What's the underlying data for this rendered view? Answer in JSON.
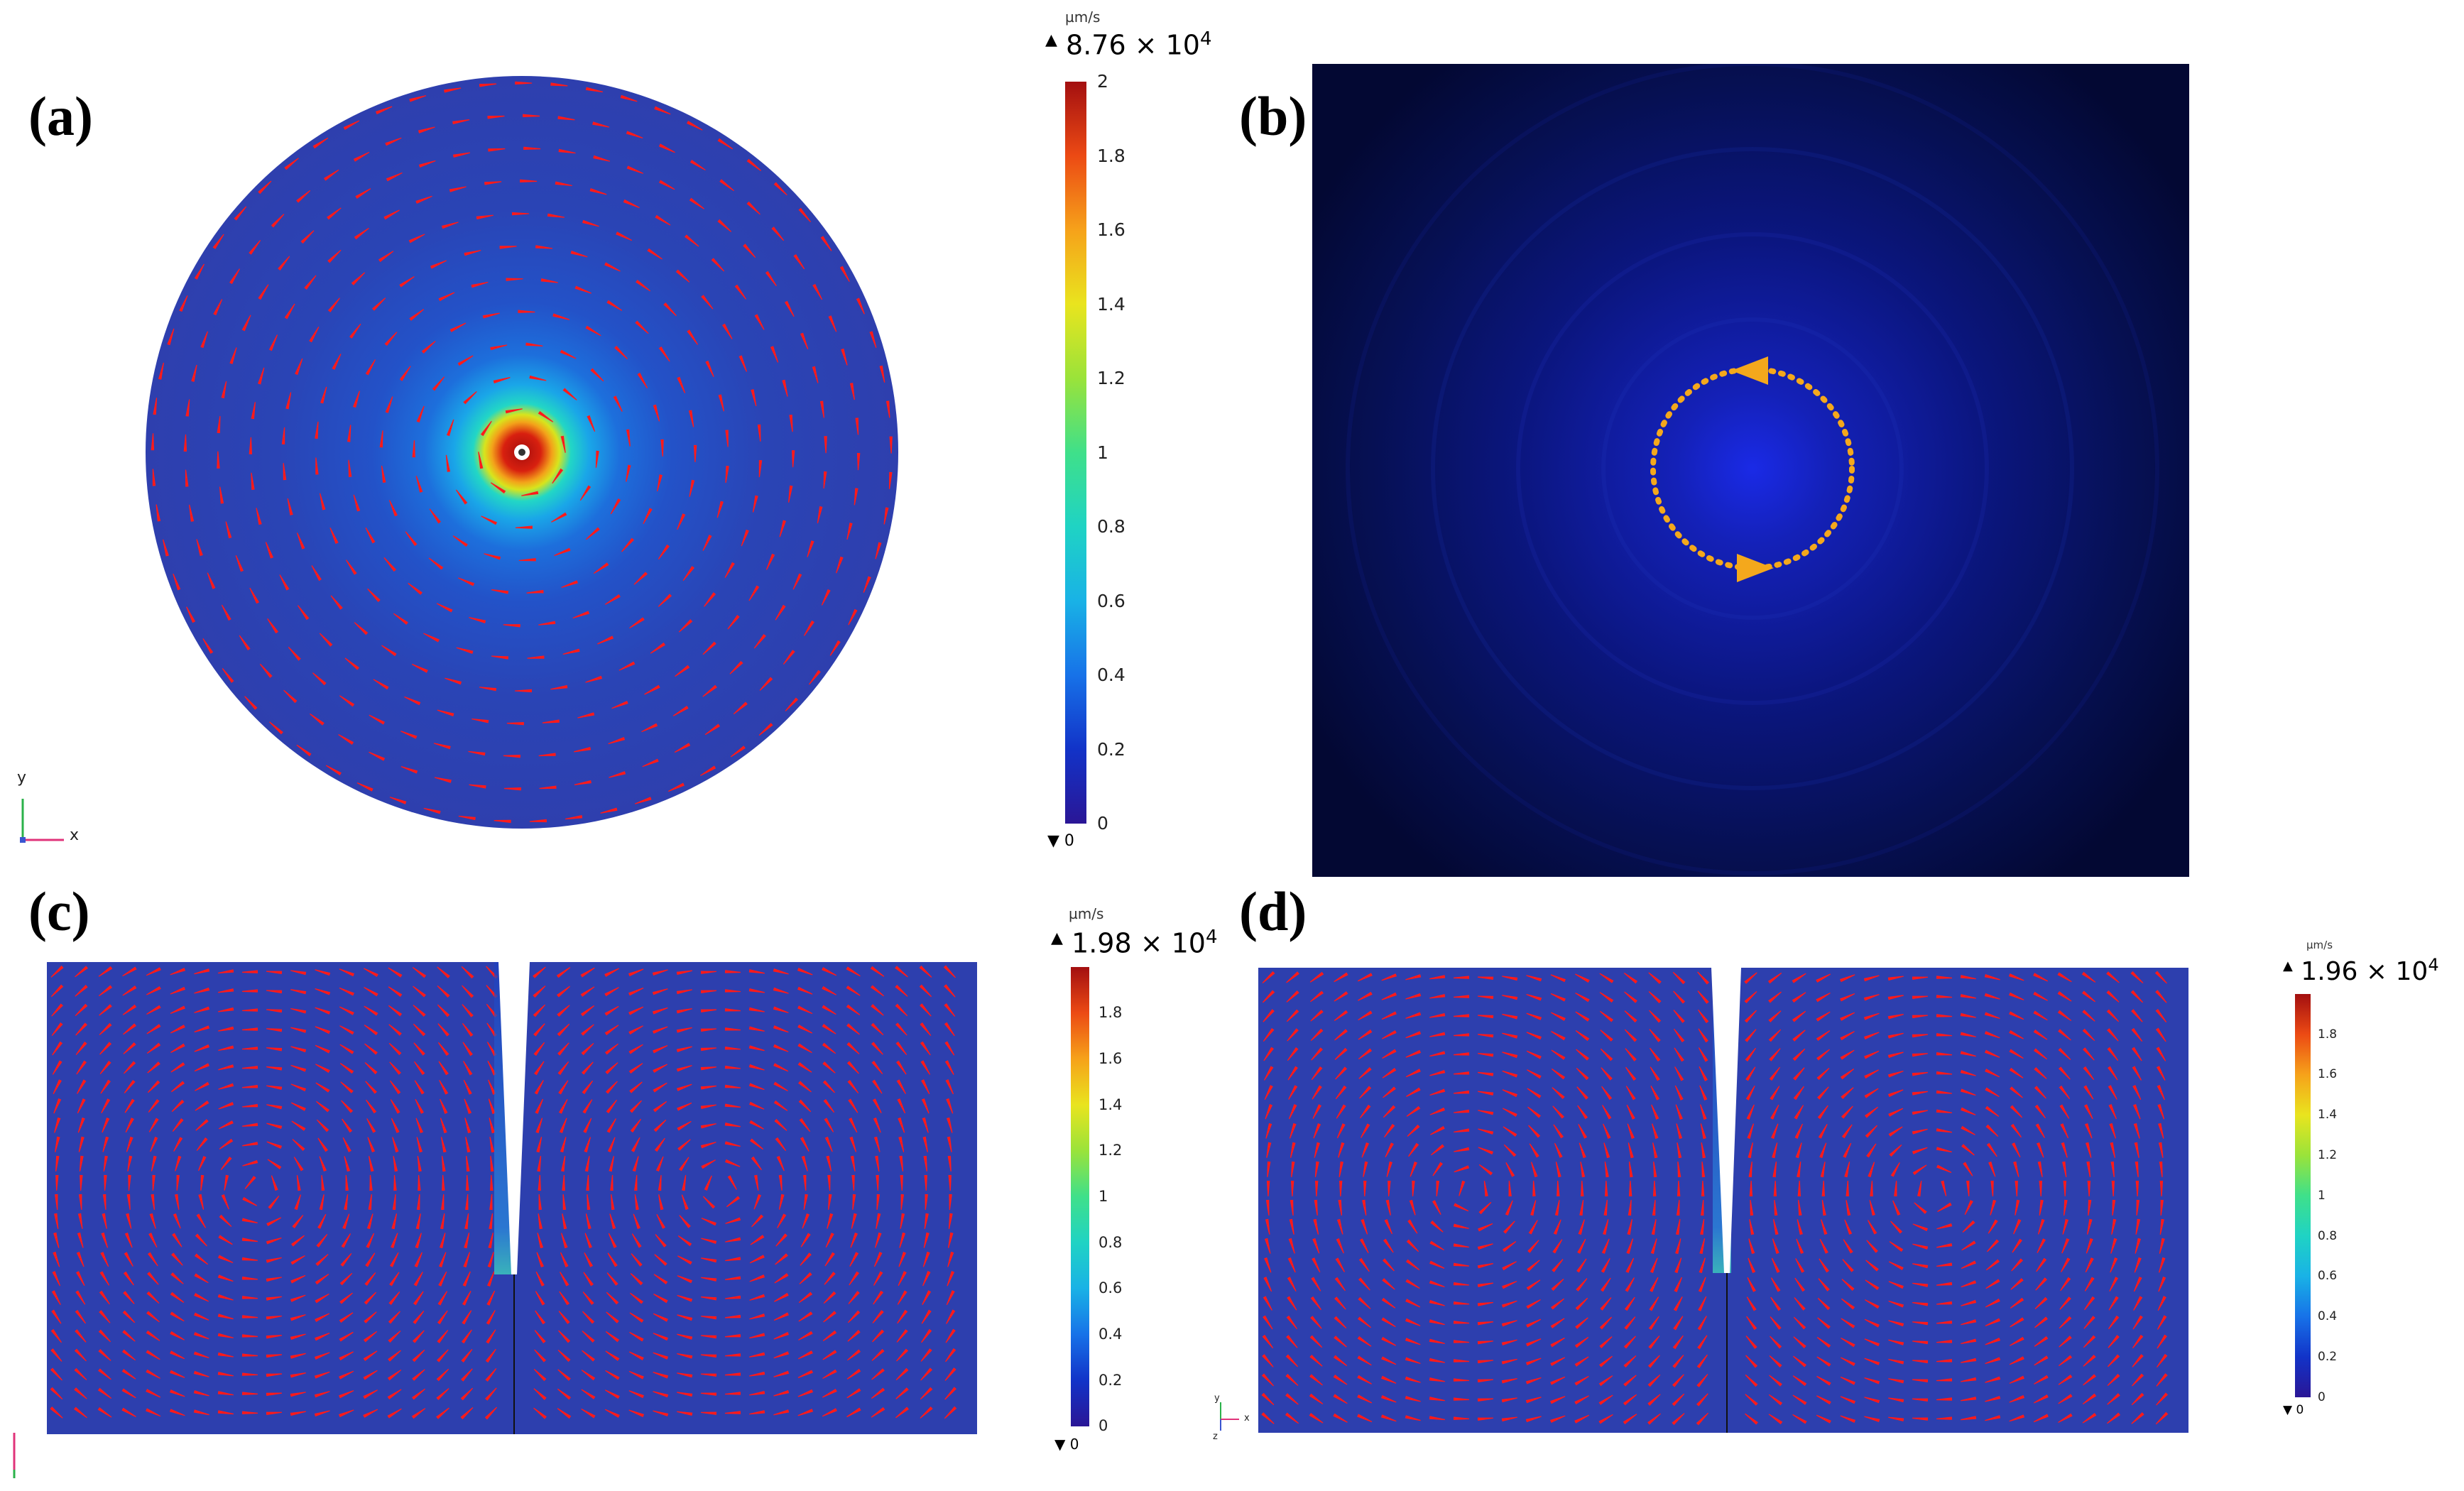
{
  "panels": {
    "a": {
      "label": "(a)",
      "colorbar": {
        "unit": "µm/s",
        "max_label": "8.76 × 10",
        "max_exp": "4",
        "min_label": "0",
        "ticks": [
          "2",
          "1.8",
          "1.6",
          "1.4",
          "1.2",
          "1",
          "0.8",
          "0.6",
          "0.4",
          "0.2",
          "0"
        ]
      },
      "triad": {
        "y": "y",
        "x": "x"
      }
    },
    "b": {
      "label": "(b)",
      "arrow_color": "#f4a81c"
    },
    "c": {
      "label": "(c)",
      "colorbar": {
        "unit": "µm/s",
        "max_label": "1.98 × 10",
        "max_exp": "4",
        "min_label": "0",
        "ticks": [
          "1.8",
          "1.6",
          "1.4",
          "1.2",
          "1",
          "0.8",
          "0.6",
          "0.4",
          "0.2",
          "0"
        ]
      }
    },
    "d": {
      "label": "(d)",
      "colorbar": {
        "unit": "µm/s",
        "max_label": "1.96 × 10",
        "max_exp": "4",
        "min_label": "0",
        "ticks": [
          "1.8",
          "1.6",
          "1.4",
          "1.2",
          "1",
          "0.8",
          "0.6",
          "0.4",
          "0.2",
          "0"
        ]
      },
      "triad": {
        "y": "y",
        "x": "x",
        "z": "z"
      }
    }
  },
  "colors": {
    "field_base": "#2d3fae",
    "arrow": "#ff1a1a",
    "hotspot": "#b80d0d",
    "photo_bg": "#040a3a"
  }
}
